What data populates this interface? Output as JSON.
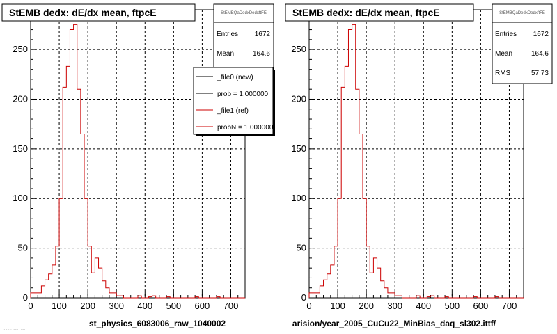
{
  "chart_data": [
    {
      "type": "histogram",
      "title": "StEMB dedx: dE/dx mean, ftpcE",
      "xlabel": "st_physics_6083006_raw_1040002",
      "xlim": [
        0,
        750
      ],
      "ylim": [
        0,
        290
      ],
      "xticks": [
        0,
        100,
        200,
        300,
        400,
        500,
        600,
        700
      ],
      "yticks": [
        0,
        50,
        100,
        150,
        200,
        250
      ],
      "grid": true,
      "stats": {
        "name": "StEMBQaDedxDedxftFE",
        "entries_label": "Entries",
        "entries": "1672",
        "mean_label": "Mean",
        "mean": "164.6"
      },
      "legend": {
        "placement": "top-right",
        "entries": [
          {
            "label": "_file0 (new)",
            "color": "#000000"
          },
          {
            "label": "prob = 1.000000",
            "color": "#000000"
          },
          {
            "label": "_file1 (ref)",
            "color": "#cc0000"
          },
          {
            "label": "probN = 1.000000",
            "color": "#cc0000"
          }
        ]
      },
      "bin_width": 12.5,
      "series": [
        {
          "color": "#cc0000",
          "values": [
            5,
            5,
            5,
            12,
            18,
            24,
            33,
            52,
            100,
            212,
            233,
            270,
            275,
            210,
            165,
            100,
            52,
            25,
            40,
            30,
            17,
            10,
            5,
            5,
            2,
            2,
            0,
            0,
            0,
            0,
            2,
            0,
            0,
            1,
            2,
            0,
            0,
            0,
            1,
            0,
            0,
            0,
            0,
            0,
            0,
            0,
            1,
            0,
            0,
            0,
            0,
            0,
            1,
            0,
            0,
            0,
            0,
            0,
            0,
            0
          ]
        }
      ]
    },
    {
      "type": "histogram",
      "title": "StEMB dedx: dE/dx mean, ftpcE",
      "xlabel": "arision/year_2005_CuCu22_MinBias_daq_sl302.ittf/",
      "xlim": [
        0,
        750
      ],
      "ylim": [
        0,
        290
      ],
      "xticks": [
        0,
        100,
        200,
        300,
        400,
        500,
        600,
        700
      ],
      "yticks": [
        0,
        50,
        100,
        150,
        200,
        250
      ],
      "grid": true,
      "stats": {
        "name": "StEMBQaDedxDedxftFE",
        "entries_label": "Entries",
        "entries": "1672",
        "mean_label": "Mean",
        "mean": "164.6",
        "rms_label": "RMS",
        "rms": "57.73"
      },
      "bin_width": 12.5,
      "series": [
        {
          "color": "#cc0000",
          "values": [
            5,
            5,
            5,
            12,
            18,
            24,
            33,
            52,
            100,
            212,
            233,
            270,
            275,
            210,
            165,
            100,
            52,
            25,
            40,
            30,
            17,
            10,
            5,
            5,
            2,
            2,
            0,
            0,
            0,
            0,
            2,
            0,
            0,
            1,
            2,
            0,
            0,
            0,
            1,
            0,
            0,
            0,
            0,
            0,
            0,
            0,
            1,
            0,
            0,
            0,
            0,
            0,
            1,
            0,
            0,
            0,
            0,
            0,
            0,
            0
          ]
        }
      ]
    }
  ],
  "footer_left": "·· ··· · ······ ····"
}
